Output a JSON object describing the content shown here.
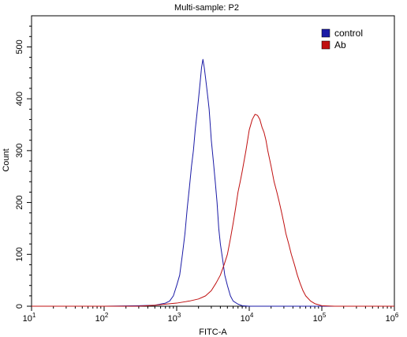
{
  "chart_data": {
    "type": "line",
    "title": "Multi-sample: P2",
    "xlabel": "FITC-A",
    "ylabel": "Count",
    "xscale": "log",
    "xlim": [
      10,
      1000000
    ],
    "ylim": [
      0,
      560
    ],
    "grid": false,
    "legend_position": "top-right",
    "x_ticks": [
      {
        "base": "10",
        "exp": "1",
        "value": 10
      },
      {
        "base": "10",
        "exp": "2",
        "value": 100
      },
      {
        "base": "10",
        "exp": "3",
        "value": 1000
      },
      {
        "base": "10",
        "exp": "4",
        "value": 10000
      },
      {
        "base": "10",
        "exp": "5",
        "value": 100000
      },
      {
        "base": "10",
        "exp": "6",
        "value": 1000000
      }
    ],
    "y_ticks": [
      {
        "label": "0",
        "value": 0
      },
      {
        "label": "100",
        "value": 100
      },
      {
        "label": "200",
        "value": 200
      },
      {
        "label": "300",
        "value": 300
      },
      {
        "label": "400",
        "value": 400
      },
      {
        "label": "500",
        "value": 500
      }
    ],
    "series": [
      {
        "name": "control",
        "color": "#1a1aa6",
        "points": [
          [
            10,
            0
          ],
          [
            100,
            0
          ],
          [
            300,
            1
          ],
          [
            500,
            2
          ],
          [
            700,
            6
          ],
          [
            800,
            10
          ],
          [
            900,
            20
          ],
          [
            1000,
            40
          ],
          [
            1100,
            60
          ],
          [
            1200,
            100
          ],
          [
            1300,
            140
          ],
          [
            1400,
            190
          ],
          [
            1500,
            230
          ],
          [
            1600,
            270
          ],
          [
            1700,
            300
          ],
          [
            1800,
            340
          ],
          [
            1900,
            370
          ],
          [
            2000,
            400
          ],
          [
            2100,
            430
          ],
          [
            2200,
            460
          ],
          [
            2300,
            476
          ],
          [
            2400,
            460
          ],
          [
            2500,
            440
          ],
          [
            2600,
            420
          ],
          [
            2700,
            400
          ],
          [
            2800,
            380
          ],
          [
            2900,
            350
          ],
          [
            3000,
            320
          ],
          [
            3200,
            280
          ],
          [
            3400,
            240
          ],
          [
            3600,
            200
          ],
          [
            3800,
            150
          ],
          [
            4000,
            120
          ],
          [
            4300,
            90
          ],
          [
            4600,
            60
          ],
          [
            5000,
            40
          ],
          [
            5500,
            20
          ],
          [
            6000,
            10
          ],
          [
            7000,
            4
          ],
          [
            8000,
            1
          ],
          [
            10000,
            0
          ],
          [
            1000000,
            0
          ]
        ]
      },
      {
        "name": "Ab",
        "color": "#c01010",
        "points": [
          [
            10,
            0
          ],
          [
            300,
            0
          ],
          [
            500,
            2
          ],
          [
            700,
            4
          ],
          [
            1000,
            6
          ],
          [
            1500,
            10
          ],
          [
            2000,
            14
          ],
          [
            2500,
            20
          ],
          [
            3000,
            30
          ],
          [
            3500,
            45
          ],
          [
            4000,
            60
          ],
          [
            4500,
            80
          ],
          [
            5000,
            100
          ],
          [
            5500,
            130
          ],
          [
            6000,
            160
          ],
          [
            6500,
            190
          ],
          [
            7000,
            220
          ],
          [
            7500,
            240
          ],
          [
            8000,
            260
          ],
          [
            9000,
            300
          ],
          [
            10000,
            340
          ],
          [
            11000,
            360
          ],
          [
            12000,
            370
          ],
          [
            13000,
            368
          ],
          [
            14000,
            360
          ],
          [
            15000,
            345
          ],
          [
            16000,
            335
          ],
          [
            17000,
            320
          ],
          [
            18000,
            300
          ],
          [
            20000,
            270
          ],
          [
            22000,
            240
          ],
          [
            24000,
            220
          ],
          [
            26000,
            200
          ],
          [
            28000,
            180
          ],
          [
            30000,
            160
          ],
          [
            32000,
            140
          ],
          [
            35000,
            120
          ],
          [
            38000,
            100
          ],
          [
            42000,
            80
          ],
          [
            46000,
            60
          ],
          [
            50000,
            45
          ],
          [
            55000,
            30
          ],
          [
            60000,
            20
          ],
          [
            70000,
            10
          ],
          [
            80000,
            5
          ],
          [
            100000,
            1
          ],
          [
            150000,
            0
          ],
          [
            1000000,
            0
          ]
        ]
      }
    ]
  },
  "legend": {
    "items": [
      {
        "label": "control",
        "color": "#1a1aa6"
      },
      {
        "label": "Ab",
        "color": "#c01010"
      }
    ]
  }
}
